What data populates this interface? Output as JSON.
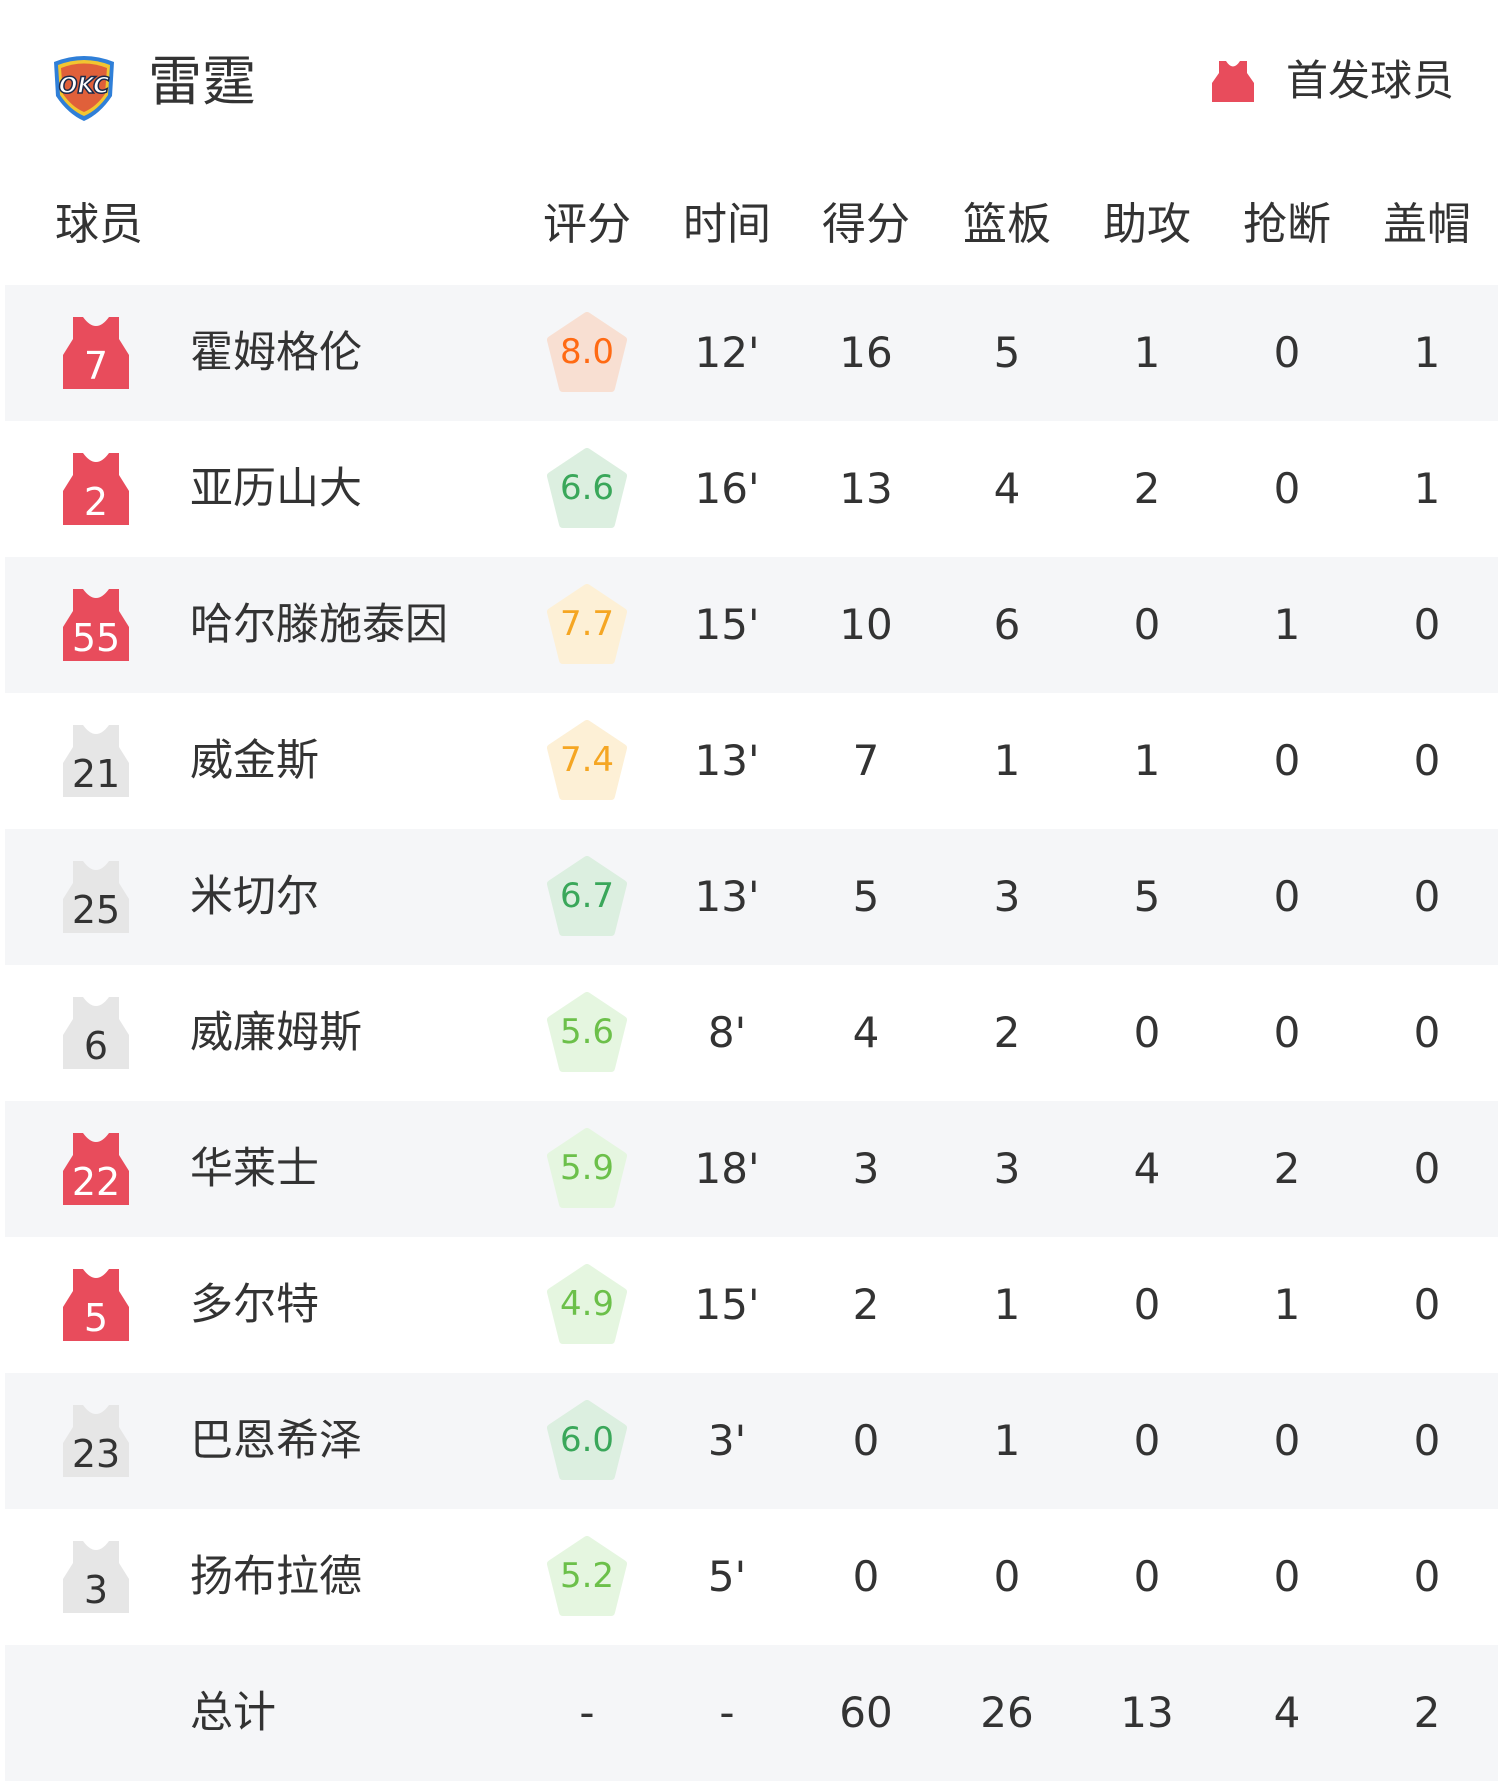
{
  "team": {
    "name": "雷霆",
    "logo_text": "OKC"
  },
  "legend": {
    "label": "首发球员",
    "color": "#e84c5c"
  },
  "columns": {
    "player": "球员",
    "rating": "评分",
    "time": "时间",
    "pts": "得分",
    "reb": "篮板",
    "ast": "助攻",
    "stl": "抢断",
    "blk": "盖帽"
  },
  "colors": {
    "starter": "#e84c5c",
    "bench": "#e6e6e6",
    "bench_text": "#333333"
  },
  "players": [
    {
      "number": "7",
      "starter": true,
      "name": "霍姆格伦",
      "rating": "8.0",
      "tier": "orange",
      "time": "12'",
      "pts": "16",
      "reb": "5",
      "ast": "1",
      "stl": "0",
      "blk": "1"
    },
    {
      "number": "2",
      "starter": true,
      "name": "亚历山大",
      "rating": "6.6",
      "tier": "green",
      "time": "16'",
      "pts": "13",
      "reb": "4",
      "ast": "2",
      "stl": "0",
      "blk": "1"
    },
    {
      "number": "55",
      "starter": true,
      "name": "哈尔滕施泰因",
      "rating": "7.7",
      "tier": "yellow",
      "time": "15'",
      "pts": "10",
      "reb": "6",
      "ast": "0",
      "stl": "1",
      "blk": "0"
    },
    {
      "number": "21",
      "starter": false,
      "name": "威金斯",
      "rating": "7.4",
      "tier": "yellow",
      "time": "13'",
      "pts": "7",
      "reb": "1",
      "ast": "1",
      "stl": "0",
      "blk": "0"
    },
    {
      "number": "25",
      "starter": false,
      "name": "米切尔",
      "rating": "6.7",
      "tier": "green",
      "time": "13'",
      "pts": "5",
      "reb": "3",
      "ast": "5",
      "stl": "0",
      "blk": "0"
    },
    {
      "number": "6",
      "starter": false,
      "name": "威廉姆斯",
      "rating": "5.6",
      "tier": "light",
      "time": "8'",
      "pts": "4",
      "reb": "2",
      "ast": "0",
      "stl": "0",
      "blk": "0"
    },
    {
      "number": "22",
      "starter": true,
      "name": "华莱士",
      "rating": "5.9",
      "tier": "light",
      "time": "18'",
      "pts": "3",
      "reb": "3",
      "ast": "4",
      "stl": "2",
      "blk": "0"
    },
    {
      "number": "5",
      "starter": true,
      "name": "多尔特",
      "rating": "4.9",
      "tier": "light",
      "time": "15'",
      "pts": "2",
      "reb": "1",
      "ast": "0",
      "stl": "1",
      "blk": "0"
    },
    {
      "number": "23",
      "starter": false,
      "name": "巴恩希泽",
      "rating": "6.0",
      "tier": "green",
      "time": "3'",
      "pts": "0",
      "reb": "1",
      "ast": "0",
      "stl": "0",
      "blk": "0"
    },
    {
      "number": "3",
      "starter": false,
      "name": "扬布拉德",
      "rating": "5.2",
      "tier": "light",
      "time": "5'",
      "pts": "0",
      "reb": "0",
      "ast": "0",
      "stl": "0",
      "blk": "0"
    }
  ],
  "total": {
    "label": "总计",
    "rating": "-",
    "time": "-",
    "pts": "60",
    "reb": "26",
    "ast": "13",
    "stl": "4",
    "blk": "2"
  },
  "rating_colors": {
    "orange": {
      "bg": "#f8dfd2",
      "fg": "#ff6a13"
    },
    "yellow": {
      "bg": "#fdf0d6",
      "fg": "#f5a623"
    },
    "green": {
      "bg": "#dcefe0",
      "fg": "#3aa75a"
    },
    "light": {
      "bg": "#e5f6e0",
      "fg": "#6cc04a"
    }
  }
}
